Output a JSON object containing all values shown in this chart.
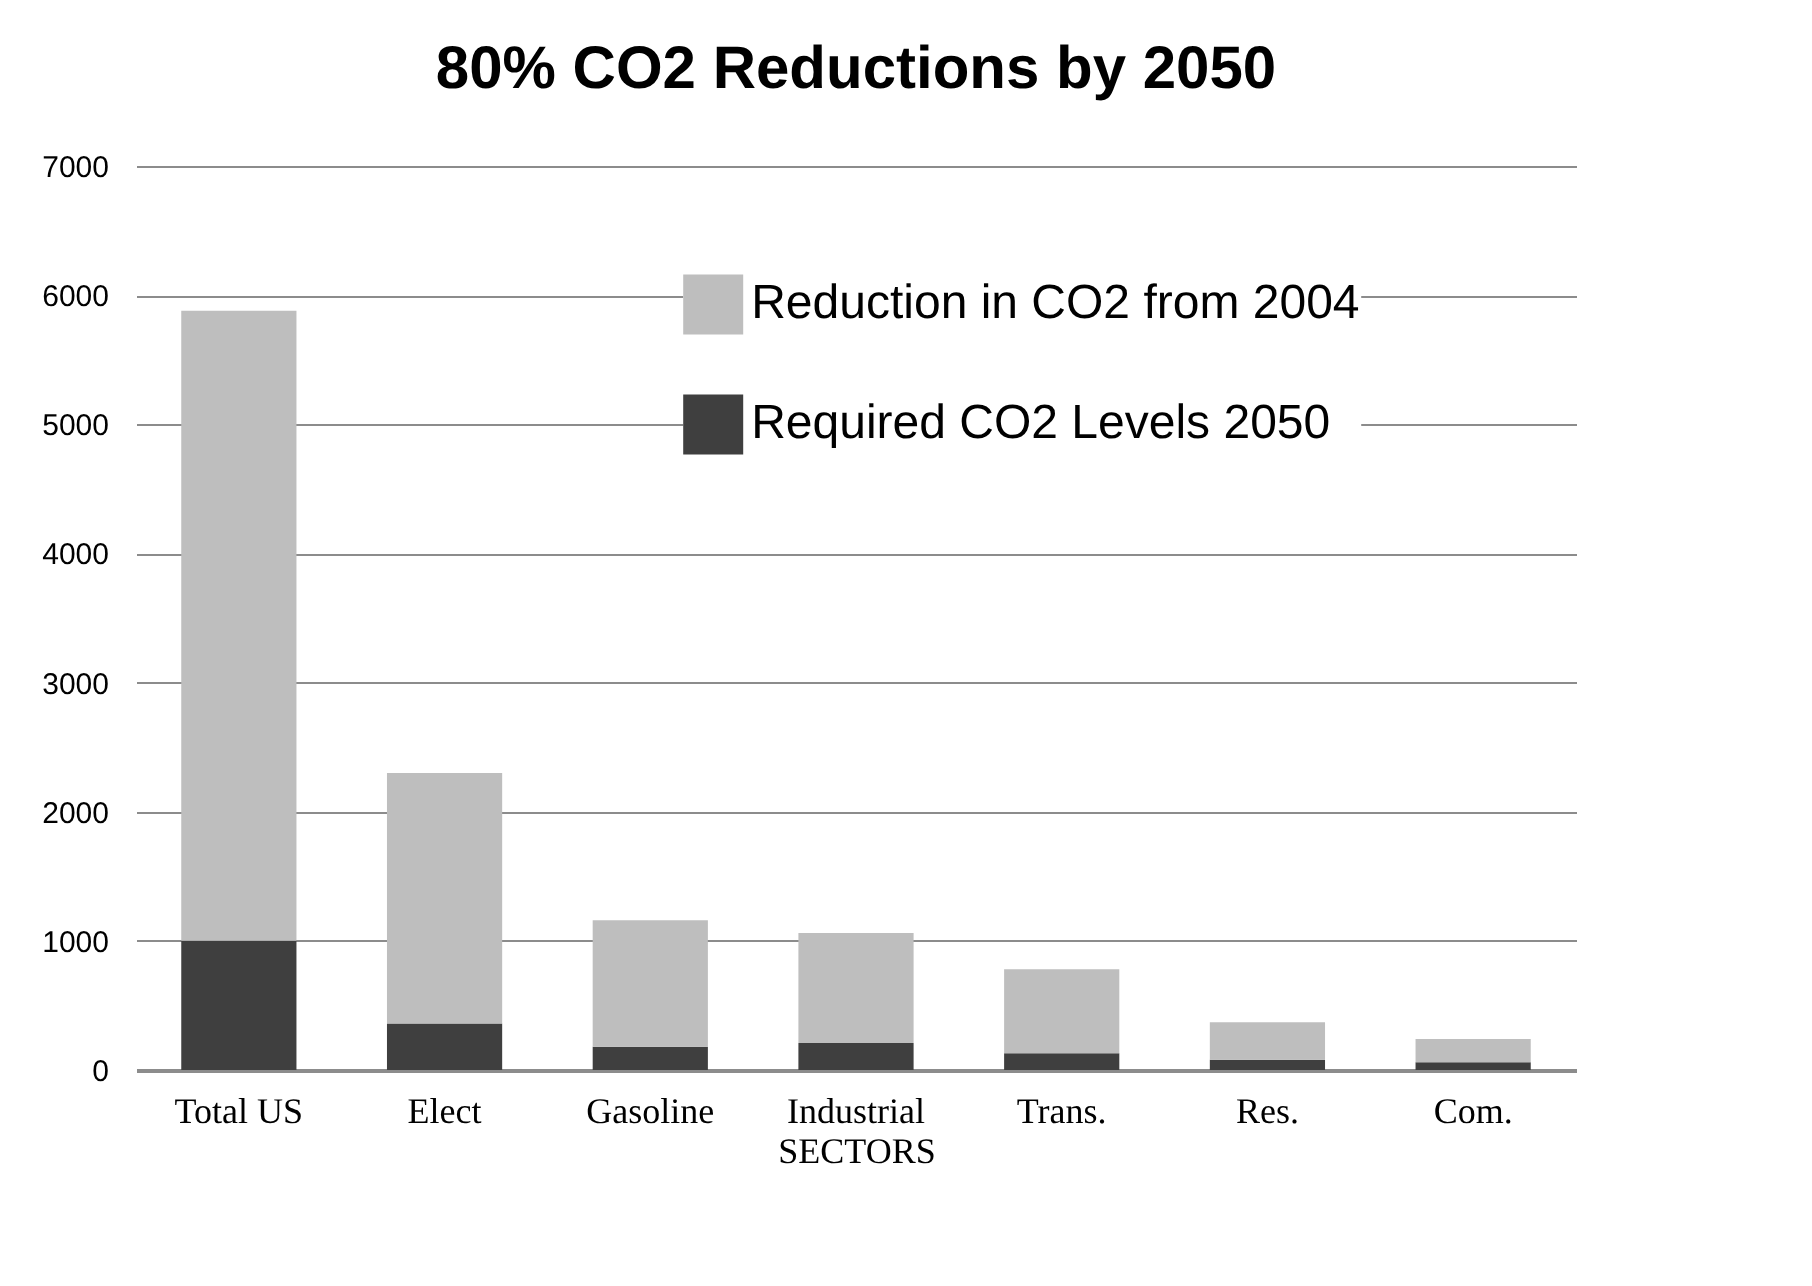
{
  "chart_data": {
    "type": "bar",
    "title": "80% CO2 Reductions by 2050",
    "xlabel": "SECTORS",
    "categories": [
      "Total  US",
      "Elect",
      "Gasoline",
      "Industrial",
      "Trans.",
      "Res.",
      "Com."
    ],
    "stacked": true,
    "series": [
      {
        "name": "Required CO2 Levels 2050",
        "color": "#3f3f3f",
        "values": [
          1000,
          360,
          180,
          210,
          130,
          80,
          60
        ]
      },
      {
        "name": "Reduction in CO2 from 2004",
        "color": "#bebebe",
        "values": [
          4880,
          1940,
          980,
          850,
          650,
          290,
          180
        ]
      }
    ],
    "ylim": [
      0,
      7000
    ],
    "yticks": [
      0,
      1000,
      2000,
      3000,
      4000,
      5000,
      6000,
      7000
    ],
    "grid": "y",
    "legend": "top"
  }
}
